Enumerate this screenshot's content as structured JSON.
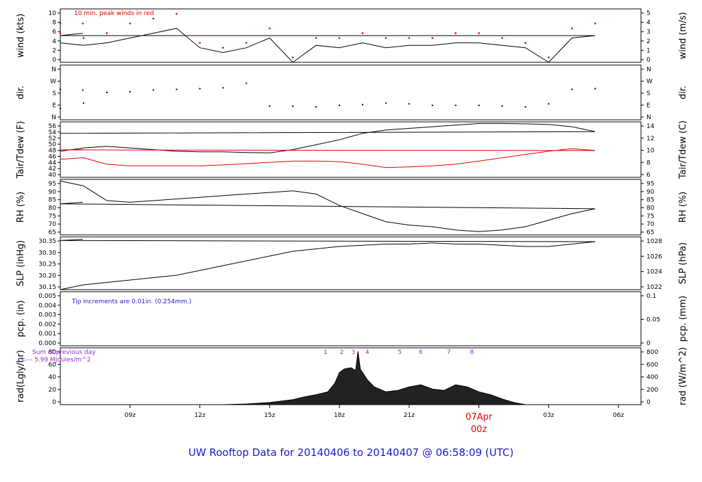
{
  "footer_title": "UW Rooftop Data for 20140406  to  20140407 @ 06:58:09  (UTC)",
  "date_marker": {
    "date": "07Apr",
    "hour": "00z"
  },
  "colors": {
    "black": "#000000",
    "red": "#e00000",
    "blue": "#1a1acc",
    "purple": "#9a2fd0"
  },
  "chart_data": [
    {
      "type": "line",
      "panel": "wind",
      "ylabel_left": "wind (kts)",
      "ylabel_right": "wind (m/s)",
      "ylim": [
        0,
        11
      ],
      "yticks_left": [
        "0",
        "2",
        "4",
        "6",
        "8",
        "10"
      ],
      "yticks_right": [
        "0",
        "1",
        "2",
        "3",
        "4",
        "5"
      ],
      "annotation": "10 min. peak winds in red",
      "x": [
        "06:00",
        "07:00",
        "08:00",
        "09:00",
        "10:00",
        "11:00",
        "12:00",
        "13:00",
        "14:00",
        "15:00",
        "16:00",
        "17:00",
        "18:00",
        "19:00",
        "20:00",
        "21:00",
        "22:00",
        "23:00",
        "00:00",
        "01:00",
        "02:00",
        "03:00",
        "04:00",
        "05:00",
        "06:00",
        "06:58"
      ],
      "series": [
        {
          "values": [
            4,
            3.5,
            4,
            5,
            6,
            7,
            3,
            2,
            3,
            5,
            0,
            3.5,
            3,
            4,
            3,
            3.5,
            3.5,
            4,
            4,
            3.5,
            3,
            0,
            5,
            5.5,
            5.5,
            6
          ]
        }
      ],
      "peak_values": [
        6,
        5,
        6,
        8,
        9,
        10,
        4,
        3,
        4,
        7,
        1,
        5,
        5,
        6,
        5,
        5,
        5,
        6,
        6,
        5,
        4,
        1,
        7,
        8,
        8,
        8
      ]
    },
    {
      "type": "scatter",
      "panel": "direction",
      "ylabel_left": "dir.",
      "ylabel_right": "dir.",
      "ylim": [
        0,
        360
      ],
      "yticks_left": [
        "N",
        "E",
        "S",
        "W",
        "N"
      ],
      "yticks_right": [
        "N",
        "E",
        "S",
        "W",
        "N"
      ],
      "x": [
        "06:00",
        "07:00",
        "08:00",
        "09:00",
        "10:00",
        "11:00",
        "12:00",
        "13:00",
        "14:00",
        "15:00",
        "16:00",
        "17:00",
        "18:00",
        "19:00",
        "20:00",
        "21:00",
        "22:00",
        "23:00",
        "00:00",
        "01:00",
        "02:00",
        "03:00",
        "04:00",
        "05:00",
        "06:00",
        "06:58"
      ],
      "values": [
        75,
        110,
        180,
        185,
        195,
        200,
        205,
        210,
        240,
        90,
        90,
        85,
        95,
        100,
        110,
        105,
        95,
        95,
        95,
        90,
        85,
        105,
        200,
        205,
        200,
        195
      ]
    },
    {
      "type": "line",
      "panel": "temperature",
      "ylabel_left": "Tair/Tdew (F)",
      "ylabel_right": "Tair/Tdew (C)",
      "ylim": [
        40,
        57
      ],
      "yticks_left": [
        "40",
        "42",
        "44",
        "46",
        "48",
        "50",
        "52",
        "54",
        "56"
      ],
      "yticks_right": [
        "6",
        "8",
        "10",
        "12",
        "14"
      ],
      "x": [
        "06:00",
        "07:00",
        "08:00",
        "09:00",
        "10:00",
        "11:00",
        "12:00",
        "13:00",
        "14:00",
        "15:00",
        "16:00",
        "17:00",
        "18:00",
        "19:00",
        "20:00",
        "21:00",
        "22:00",
        "23:00",
        "00:00",
        "01:00",
        "02:00",
        "03:00",
        "04:00",
        "05:00",
        "06:00",
        "06:58"
      ],
      "series": [
        {
          "name": "Tair",
          "values": [
            48,
            49,
            49.5,
            49,
            48.5,
            48,
            47.8,
            47.8,
            47.6,
            47.5,
            48.5,
            50,
            51.5,
            53.5,
            54.5,
            55,
            55.5,
            56,
            56.5,
            56.5,
            56.4,
            56.2,
            55.5,
            54,
            53.5,
            53.5
          ]
        },
        {
          "name": "Tdew",
          "values": [
            45.5,
            46,
            44,
            43.5,
            43.5,
            43.5,
            43.5,
            43.8,
            44.2,
            44.6,
            45,
            45,
            44.8,
            44,
            43,
            43.2,
            43.5,
            44,
            45,
            46,
            47,
            48,
            48.8,
            48.2,
            48.4,
            48.5
          ]
        }
      ]
    },
    {
      "type": "line",
      "panel": "humidity",
      "ylabel_left": "RH (%)",
      "ylabel_right": "RH (%)",
      "ylim": [
        62,
        96
      ],
      "yticks_left": [
        "65",
        "70",
        "75",
        "80",
        "85",
        "90",
        "95"
      ],
      "yticks_right": [
        "65",
        "70",
        "75",
        "80",
        "85",
        "90",
        "95"
      ],
      "x": [
        "06:00",
        "07:00",
        "08:00",
        "09:00",
        "10:00",
        "11:00",
        "12:00",
        "13:00",
        "14:00",
        "15:00",
        "16:00",
        "17:00",
        "18:00",
        "19:00",
        "20:00",
        "21:00",
        "22:00",
        "23:00",
        "00:00",
        "01:00",
        "02:00",
        "03:00",
        "04:00",
        "05:00",
        "06:00",
        "06:58"
      ],
      "values": [
        95,
        92,
        83,
        82,
        83,
        84,
        85,
        86,
        87,
        88,
        89,
        87,
        80,
        75,
        70,
        68,
        67,
        65,
        64,
        65,
        67,
        71,
        75,
        78,
        81,
        82
      ]
    },
    {
      "type": "line",
      "panel": "pressure",
      "ylabel_left": "SLP (inHg)",
      "ylabel_right": "SLP (hPa)",
      "ylim": [
        30.15,
        30.37
      ],
      "yticks_left": [
        "30.15",
        "30.20",
        "30.25",
        "30.30",
        "30.35"
      ],
      "yticks_right": [
        "1022",
        "1024",
        "1026",
        "1028"
      ],
      "x": [
        "06:00",
        "07:00",
        "08:00",
        "09:00",
        "10:00",
        "11:00",
        "12:00",
        "13:00",
        "14:00",
        "15:00",
        "16:00",
        "17:00",
        "18:00",
        "19:00",
        "20:00",
        "21:00",
        "22:00",
        "23:00",
        "00:00",
        "01:00",
        "02:00",
        "03:00",
        "04:00",
        "05:00",
        "06:00",
        "06:58"
      ],
      "values": [
        30.15,
        30.17,
        30.18,
        30.19,
        30.2,
        30.21,
        30.23,
        30.25,
        30.27,
        30.29,
        30.31,
        30.32,
        30.33,
        30.335,
        30.34,
        30.34,
        30.345,
        30.34,
        30.34,
        30.335,
        30.33,
        30.33,
        30.34,
        30.35,
        30.355,
        30.36
      ]
    },
    {
      "type": "line",
      "panel": "precipitation",
      "ylabel_left": "pcp. (in)",
      "ylabel_right": "pcp. (mm)",
      "ylim": [
        0,
        0.005
      ],
      "yticks_left": [
        "0.000",
        "0.001",
        "0.002",
        "0.003",
        "0.004",
        "0.005"
      ],
      "yticks_right": [
        "0",
        "0.05",
        "0.1"
      ],
      "annotation": "Tip increments are 0.01in. (0.254mm.)",
      "values": [
        0,
        0
      ]
    },
    {
      "type": "area",
      "panel": "radiation",
      "ylabel_left": "rad(Lgly/hr)",
      "ylabel_right": "rad (W/m^2)",
      "ylim": [
        0,
        80
      ],
      "yticks_left": [
        "0",
        "20",
        "40",
        "60",
        "80"
      ],
      "yticks_right": [
        "0",
        "200",
        "400",
        "600",
        "800"
      ],
      "annotation_lines": [
        "Sum of previous day",
        "<--- 5.99 MJoules/m^2"
      ],
      "markers": [
        "1",
        "2",
        "3",
        "4",
        "5",
        "6",
        "7",
        "8"
      ],
      "marker_hours": [
        17.4,
        18.1,
        18.6,
        19.2,
        20.6,
        21.5,
        22.7,
        23.7
      ],
      "x_hours": [
        6,
        13,
        14,
        15,
        16,
        16.5,
        17,
        17.5,
        17.8,
        18,
        18.2,
        18.5,
        18.7,
        18.8,
        18.9,
        19.2,
        19.5,
        20,
        20.5,
        21,
        21.5,
        22,
        22.5,
        23,
        23.5,
        24,
        24.5,
        25,
        25.5,
        26,
        31
      ],
      "values": [
        0,
        0,
        1,
        3,
        7,
        11,
        14,
        18,
        30,
        45,
        50,
        52,
        48,
        75,
        50,
        35,
        25,
        18,
        20,
        25,
        28,
        22,
        20,
        28,
        25,
        18,
        14,
        8,
        3,
        0,
        0
      ],
      "xticks": [
        "09z",
        "12z",
        "15z",
        "18z",
        "21z",
        "00z",
        "03z",
        "06z"
      ]
    }
  ]
}
